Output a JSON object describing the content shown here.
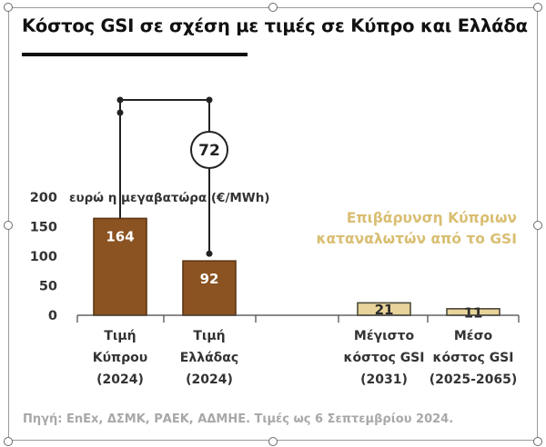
{
  "title": "Κόστος GSI σε σχέση με τιμές σε Κύπρο και Ελλάδα",
  "source": "Πηγή: ΕnEx, ΔΣΜΚ, ΡΑΕΚ, ΑΔΜΗΕ. Τιμές ως 6 Σεπτεμβρίου 2024.",
  "colors": {
    "brown": "#8B5321",
    "brown_edge": "#5e3612",
    "gold": "#E8D49A",
    "gold_edge": "#4e4a3a",
    "gold_text": "#D9BE72"
  },
  "chart_data": {
    "type": "bar",
    "unit_label": "ευρώ η μεγαβατώρα (€/MWh)",
    "ylim": [
      0,
      200
    ],
    "yticks": [
      "0",
      "50",
      "100",
      "150",
      "200"
    ],
    "categories": [
      {
        "lines": [
          "Τιμή",
          "Κύπρου",
          "(2024)"
        ]
      },
      {
        "lines": [
          "Τιμή",
          "Ελλάδας",
          "(2024)"
        ]
      },
      {
        "lines": [
          "Μέγιστο",
          "κόστος GSI",
          "(2031)"
        ]
      },
      {
        "lines": [
          "Μέσο",
          "κόστος GSI",
          "(2025-2065)"
        ]
      }
    ],
    "values": [
      164,
      92,
      21,
      11
    ],
    "value_labels": [
      "164",
      "92",
      "21",
      "11"
    ],
    "bar_colors": [
      "brown",
      "brown",
      "gold",
      "gold"
    ],
    "difference": {
      "value": 72,
      "label": "72"
    },
    "annotation": [
      "Επιβάρυνση Κύπριων",
      "καταναλωτών από το GSI"
    ],
    "grid": false
  }
}
